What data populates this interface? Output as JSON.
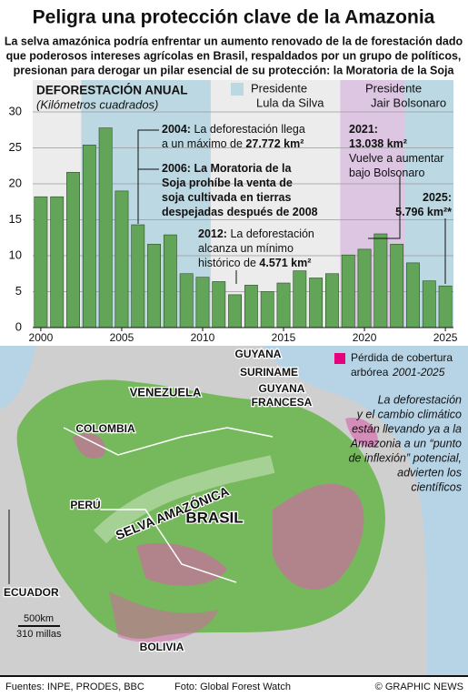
{
  "chart_data": {
    "type": "bar",
    "title": "Peligra una protección clave de la Amazonia",
    "subtitle": [
      "La selva amazónica podría enfrentar un aumento renovado de la de forestación dado",
      "que poderosos intereses agrícolas en Brasil, respaldados por un grupo de políticos,",
      "presionan para derogar un pilar esencial de su protección: la Moratoria de la Soja"
    ],
    "chart_title": "DEFORESTACIÓN ANUAL",
    "unit_label": "(Kilómetros cuadrados)",
    "x": [
      2000,
      2001,
      2002,
      2003,
      2004,
      2005,
      2006,
      2007,
      2008,
      2009,
      2010,
      2011,
      2012,
      2013,
      2014,
      2015,
      2016,
      2017,
      2018,
      2019,
      2020,
      2021,
      2022,
      2023,
      2024,
      2025
    ],
    "values": [
      18.2,
      18.2,
      21.6,
      25.4,
      27.772,
      19.0,
      14.3,
      11.6,
      12.9,
      7.5,
      7.0,
      6.4,
      4.571,
      5.9,
      5.0,
      6.2,
      7.9,
      6.9,
      7.5,
      10.1,
      10.9,
      13.038,
      11.6,
      9.0,
      6.5,
      5.796
    ],
    "color": "#62a558",
    "xlim": [
      1999.5,
      2025.5
    ],
    "xticks": [
      2000,
      2005,
      2010,
      2015,
      2020,
      2025
    ],
    "ylim": [
      0,
      30
    ],
    "yticks": [
      0,
      5,
      10,
      15,
      20,
      25,
      30
    ],
    "grid": true,
    "periods": [
      {
        "name": [
          "Presidente",
          "Lula da Silva"
        ],
        "start": 2003,
        "end": 2010,
        "color": "#bcd8e3"
      },
      {
        "name": [
          "Presidente",
          "Jair Bolsonaro"
        ],
        "start": 2019,
        "end": 2022,
        "color": "#dcc6e2"
      },
      {
        "start": 2023,
        "end": 2025,
        "color": "#bcd8e3"
      }
    ],
    "annotations": [
      {
        "lines": [
          [
            {
              "t": "2004:",
              "b": true
            },
            {
              "t": " La deforestación llega"
            }
          ],
          [
            {
              "t": "a un máximo de "
            },
            {
              "t": "27.772 km²",
              "b": true
            }
          ]
        ]
      },
      {
        "lines": [
          [
            {
              "t": "2006: La Moratoria de la",
              "b": true
            }
          ],
          [
            {
              "t": "Soja prohíbe la venta de",
              "b": true
            }
          ],
          [
            {
              "t": "soja cultivada en tierras",
              "b": true
            }
          ],
          [
            {
              "t": "despejadas después de 2008",
              "b": true
            }
          ]
        ]
      },
      {
        "lines": [
          [
            {
              "t": "2012:",
              "b": true
            },
            {
              "t": " La deforestación"
            }
          ],
          [
            {
              "t": "alcanza un mínimo"
            }
          ],
          [
            {
              "t": "histórico de "
            },
            {
              "t": "4.571 km²",
              "b": true
            }
          ]
        ]
      },
      {
        "lines": [
          [
            {
              "t": "2021:",
              "b": true
            }
          ],
          [
            {
              "t": "13.038 km²",
              "b": true
            }
          ],
          [
            {
              "t": "Vuelve a aumentar"
            }
          ],
          [
            {
              "t": "bajo Bolsonaro"
            }
          ]
        ]
      },
      {
        "lines": [
          [
            {
              "t": "2025:",
              "b": true
            }
          ],
          [
            {
              "t": "5.796 km²*",
              "b": true
            }
          ]
        ]
      }
    ]
  },
  "map": {
    "legend": [
      "Pérdida de cobertura",
      "arbórea",
      "2001-2025"
    ],
    "labels": [
      "VENEZUELA",
      "COLOMBIA",
      "GUYANA",
      "SURINAME",
      "GUYANA",
      "FRANCESA",
      "PERÚ",
      "BRASIL",
      "BOLIVIA",
      "ECUADOR",
      "SELVA AMAZÓNICA"
    ],
    "scale": [
      "500km",
      "310 millas"
    ],
    "note": [
      "La deforestación",
      "y el cambio climático",
      "están llevando ya a la",
      "Amazonia a un “punto",
      "de inflexión” potencial,",
      "advierten los",
      "científicos"
    ]
  },
  "footer": {
    "sources": "Fuentes: INPE, PRODES, BBC",
    "photo": "Foto: Global Forest Watch",
    "credit": "© GRAPHIC NEWS"
  }
}
